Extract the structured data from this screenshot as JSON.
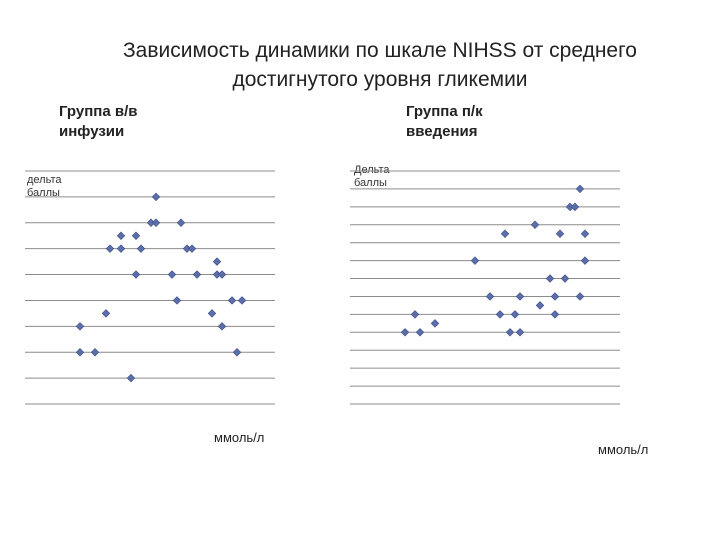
{
  "header": {
    "title_line1": "Зависимость динамики по шкале NIHSS от среднего",
    "title_line2": "достигнутого уровня гликемии"
  },
  "charts": {
    "left": {
      "group_label_line1": "Группа в/в",
      "group_label_line2": "инфузии",
      "ylabel_line1": "дельта",
      "ylabel_line2": "баллы",
      "x_unit": "ммоль/л"
    },
    "right": {
      "group_label_line1": "Группа п/к",
      "group_label_line2": "введения",
      "ylabel_line1": "Дельта",
      "ylabel_line2": "баллы",
      "x_unit": "ммоль/л"
    }
  },
  "colors": {
    "marker": "#5b6eaa",
    "marker_stroke": "#3f4f86",
    "gridline": "#8c8c8c"
  },
  "chart_data": [
    {
      "type": "scatter",
      "title": "",
      "xlabel": "ммоль/л",
      "ylabel": "дельта баллы",
      "grid": true,
      "xlim": [
        0,
        250
      ],
      "ylim": [
        0,
        9
      ],
      "points": [
        {
          "x": 131,
          "y": 8
        },
        {
          "x": 126,
          "y": 7
        },
        {
          "x": 131,
          "y": 7
        },
        {
          "x": 156,
          "y": 7
        },
        {
          "x": 96,
          "y": 6.5
        },
        {
          "x": 111,
          "y": 6.5
        },
        {
          "x": 85,
          "y": 6
        },
        {
          "x": 96,
          "y": 6
        },
        {
          "x": 116,
          "y": 6
        },
        {
          "x": 162,
          "y": 6
        },
        {
          "x": 167,
          "y": 6
        },
        {
          "x": 192,
          "y": 5.5
        },
        {
          "x": 111,
          "y": 5
        },
        {
          "x": 147,
          "y": 5
        },
        {
          "x": 172,
          "y": 5
        },
        {
          "x": 192,
          "y": 5
        },
        {
          "x": 197,
          "y": 5
        },
        {
          "x": 152,
          "y": 4
        },
        {
          "x": 207,
          "y": 4
        },
        {
          "x": 217,
          "y": 4
        },
        {
          "x": 81,
          "y": 3.5
        },
        {
          "x": 187,
          "y": 3.5
        },
        {
          "x": 55,
          "y": 3
        },
        {
          "x": 197,
          "y": 3
        },
        {
          "x": 55,
          "y": 2
        },
        {
          "x": 70,
          "y": 2
        },
        {
          "x": 212,
          "y": 2
        },
        {
          "x": 106,
          "y": 1
        }
      ]
    },
    {
      "type": "scatter",
      "title": "",
      "xlabel": "ммоль/л",
      "ylabel": "Дельта баллы",
      "grid": true,
      "xlim": [
        0,
        270
      ],
      "ylim": [
        0,
        13
      ],
      "points": [
        {
          "x": 230,
          "y": 12
        },
        {
          "x": 220,
          "y": 11
        },
        {
          "x": 225,
          "y": 11
        },
        {
          "x": 185,
          "y": 10
        },
        {
          "x": 155,
          "y": 9.5
        },
        {
          "x": 210,
          "y": 9.5
        },
        {
          "x": 235,
          "y": 9.5
        },
        {
          "x": 125,
          "y": 8
        },
        {
          "x": 235,
          "y": 8
        },
        {
          "x": 200,
          "y": 7
        },
        {
          "x": 215,
          "y": 7
        },
        {
          "x": 140,
          "y": 6
        },
        {
          "x": 170,
          "y": 6
        },
        {
          "x": 205,
          "y": 6
        },
        {
          "x": 230,
          "y": 6
        },
        {
          "x": 190,
          "y": 5.5
        },
        {
          "x": 65,
          "y": 5
        },
        {
          "x": 150,
          "y": 5
        },
        {
          "x": 165,
          "y": 5
        },
        {
          "x": 205,
          "y": 5
        },
        {
          "x": 85,
          "y": 4.5
        },
        {
          "x": 55,
          "y": 4
        },
        {
          "x": 70,
          "y": 4
        },
        {
          "x": 160,
          "y": 4
        },
        {
          "x": 170,
          "y": 4
        }
      ]
    }
  ]
}
